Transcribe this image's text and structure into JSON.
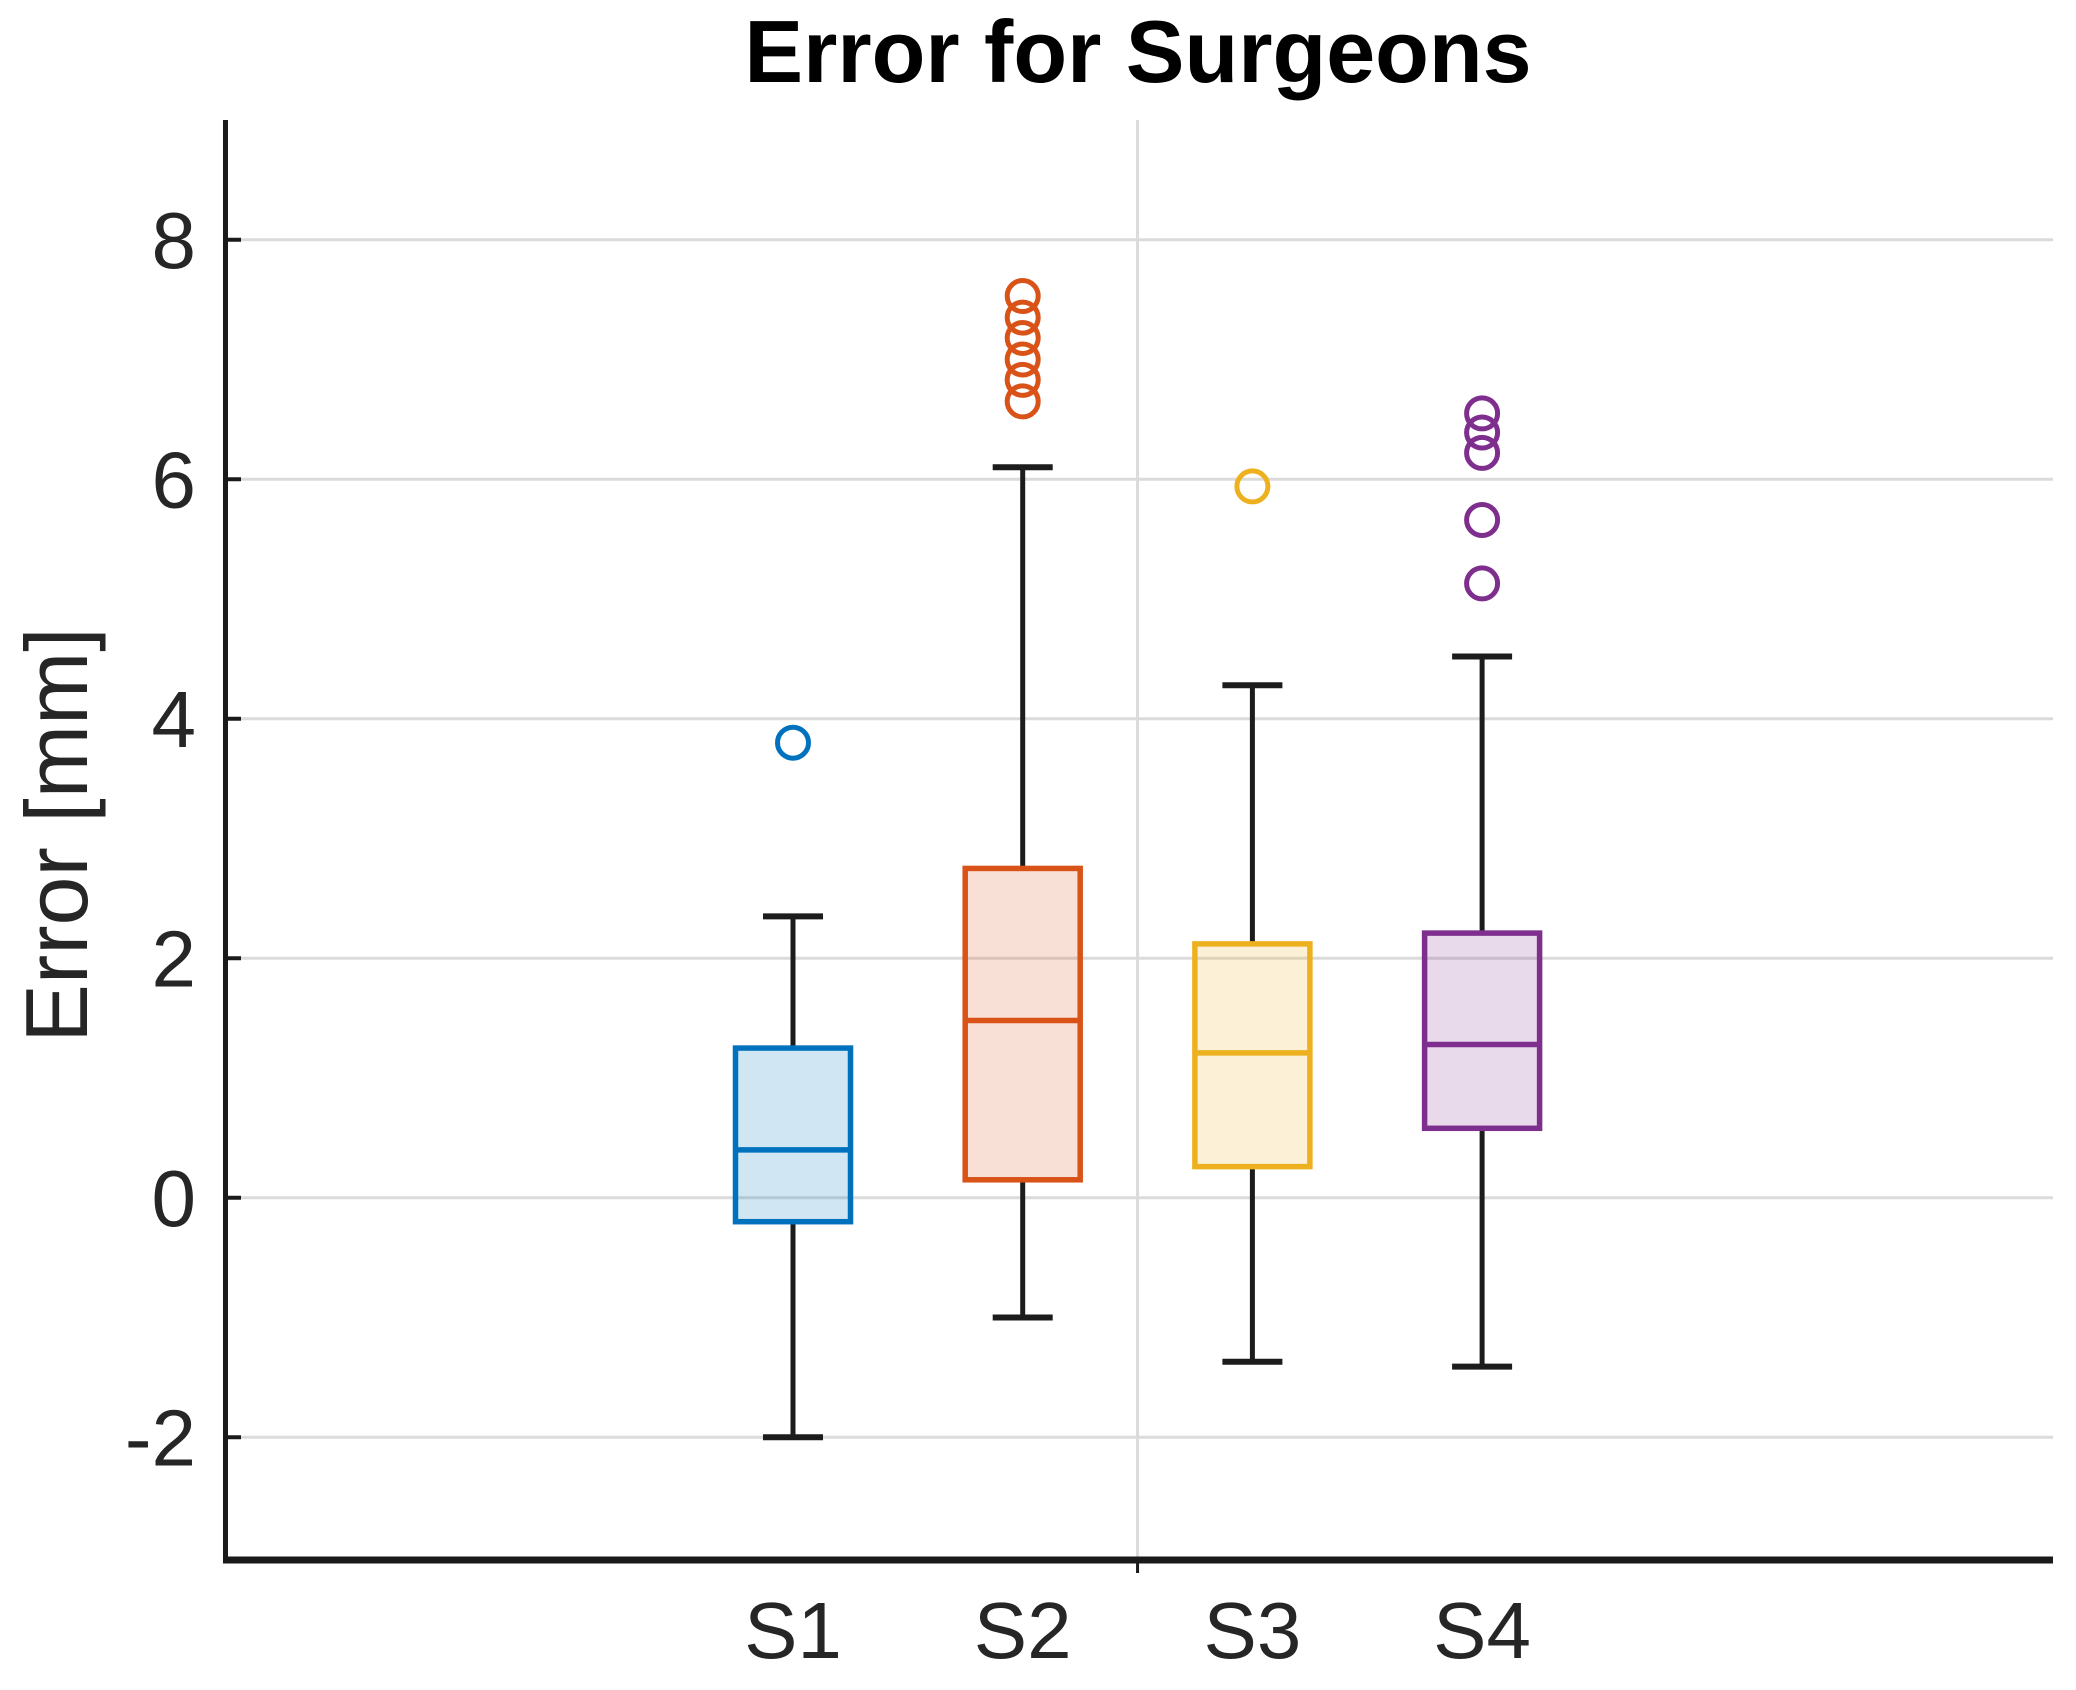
{
  "chart_data": {
    "type": "box",
    "title": "Error for Surgeons",
    "ylabel": "Error [mm]",
    "xlabel": "",
    "categories": [
      "S1",
      "S2",
      "S3",
      "S4"
    ],
    "ylim": [
      -3,
      9
    ],
    "yticks": [
      8,
      6,
      4,
      2,
      0,
      -2
    ],
    "grid": {
      "horizontal_gridlines_at_yticks": true,
      "vertical_gridline_between": [
        "S2",
        "S3"
      ],
      "x_tick_between": [
        "S2",
        "S3"
      ]
    },
    "legend": "none",
    "series": [
      {
        "name": "S1",
        "color": "#0072BD",
        "whisker_low": -2.0,
        "q1": -0.2,
        "median": 0.4,
        "q3": 1.25,
        "whisker_high": 2.35,
        "outliers": [
          3.8
        ]
      },
      {
        "name": "S2",
        "color": "#D95319",
        "whisker_low": -1.0,
        "q1": 0.15,
        "median": 1.48,
        "q3": 2.75,
        "whisker_high": 6.1,
        "outliers": [
          6.65,
          6.83,
          7.0,
          7.18,
          7.35,
          7.53
        ]
      },
      {
        "name": "S3",
        "color": "#EDB120",
        "whisker_low": -1.37,
        "q1": 0.26,
        "median": 1.21,
        "q3": 2.12,
        "whisker_high": 4.28,
        "outliers": [
          5.94
        ]
      },
      {
        "name": "S4",
        "color": "#7E2F8E",
        "whisker_low": -1.41,
        "q1": 0.58,
        "median": 1.28,
        "q3": 2.21,
        "whisker_high": 4.52,
        "outliers": [
          5.13,
          5.66,
          6.22,
          6.39,
          6.55
        ]
      }
    ],
    "colors": {
      "grid": "#DBDBDB",
      "axis": "#1A1A1A",
      "whisker": "#1C1C1C",
      "tick_text": "#262626",
      "title_text": "#000000",
      "box_fill_opacity": 0.18
    }
  }
}
